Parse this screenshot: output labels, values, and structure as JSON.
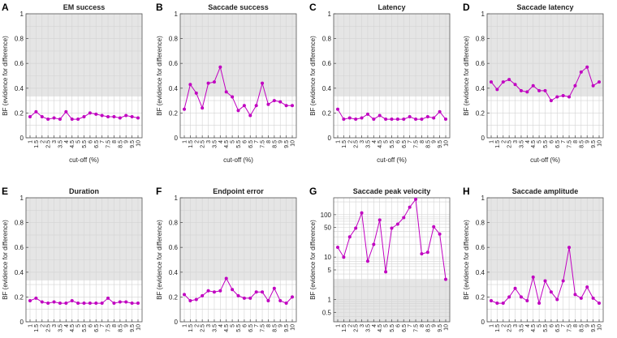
{
  "figure": {
    "x_tick_labels": [
      "1",
      "1.5",
      "2",
      "2.5",
      "3",
      "3.5",
      "4",
      "4.5",
      "5",
      "5.5",
      "6",
      "6.5",
      "7",
      "7.5",
      "8",
      "8.5",
      "9",
      "9.5",
      "10"
    ],
    "xlabel": "cut-off (%)",
    "ylabel": "BF (evidence for difference)",
    "colors": {
      "series": "#c000c0",
      "shade": "#e5e5e5",
      "grid": "#d4d4d4",
      "axis": "#555555",
      "text": "#222222"
    }
  },
  "chart_data": [
    {
      "letter": "A",
      "type": "line",
      "title": "EM success",
      "scale": "linear",
      "ylim": [
        0,
        1
      ],
      "shade_above": 0.333,
      "yticks": [
        0,
        0.2,
        0.4,
        0.6,
        0.8,
        1
      ],
      "ytick_labels": [
        "0",
        "0.2",
        "0.4",
        "0.6",
        "0.8",
        "1"
      ],
      "x": [
        1,
        1.5,
        2,
        2.5,
        3,
        3.5,
        4,
        4.5,
        5,
        5.5,
        6,
        6.5,
        7,
        7.5,
        8,
        8.5,
        9,
        9.5,
        10
      ],
      "values": [
        0.17,
        0.21,
        0.17,
        0.15,
        0.16,
        0.15,
        0.21,
        0.15,
        0.15,
        0.17,
        0.2,
        0.19,
        0.18,
        0.17,
        0.17,
        0.16,
        0.18,
        0.17,
        0.16
      ]
    },
    {
      "letter": "B",
      "type": "line",
      "title": "Saccade success",
      "scale": "linear",
      "ylim": [
        0,
        1
      ],
      "shade_above": 0.333,
      "yticks": [
        0,
        0.2,
        0.4,
        0.6,
        0.8,
        1
      ],
      "ytick_labels": [
        "0",
        "0.2",
        "0.4",
        "0.6",
        "0.8",
        "1"
      ],
      "x": [
        1,
        1.5,
        2,
        2.5,
        3,
        3.5,
        4,
        4.5,
        5,
        5.5,
        6,
        6.5,
        7,
        7.5,
        8,
        8.5,
        9,
        9.5,
        10
      ],
      "values": [
        0.23,
        0.43,
        0.36,
        0.24,
        0.44,
        0.45,
        0.57,
        0.37,
        0.33,
        0.22,
        0.26,
        0.18,
        0.26,
        0.44,
        0.27,
        0.3,
        0.29,
        0.26,
        0.26
      ]
    },
    {
      "letter": "C",
      "type": "line",
      "title": "Latency",
      "scale": "linear",
      "ylim": [
        0,
        1
      ],
      "shade_above": 0.333,
      "yticks": [
        0,
        0.2,
        0.4,
        0.6,
        0.8,
        1
      ],
      "ytick_labels": [
        "0",
        "0.2",
        "0.4",
        "0.6",
        "0.8",
        "1"
      ],
      "x": [
        1,
        1.5,
        2,
        2.5,
        3,
        3.5,
        4,
        4.5,
        5,
        5.5,
        6,
        6.5,
        7,
        7.5,
        8,
        8.5,
        9,
        9.5,
        10
      ],
      "values": [
        0.23,
        0.15,
        0.16,
        0.15,
        0.16,
        0.19,
        0.15,
        0.18,
        0.15,
        0.15,
        0.15,
        0.15,
        0.17,
        0.15,
        0.15,
        0.17,
        0.16,
        0.21,
        0.15
      ]
    },
    {
      "letter": "D",
      "type": "line",
      "title": "Saccade latency",
      "scale": "linear",
      "ylim": [
        0,
        1
      ],
      "shade_above": 0.333,
      "yticks": [
        0,
        0.2,
        0.4,
        0.6,
        0.8,
        1
      ],
      "ytick_labels": [
        "0",
        "0.2",
        "0.4",
        "0.6",
        "0.8",
        "1"
      ],
      "x": [
        1,
        1.5,
        2,
        2.5,
        3,
        3.5,
        4,
        4.5,
        5,
        5.5,
        6,
        6.5,
        7,
        7.5,
        8,
        8.5,
        9,
        9.5,
        10
      ],
      "values": [
        0.45,
        0.39,
        0.45,
        0.47,
        0.43,
        0.38,
        0.37,
        0.42,
        0.38,
        0.38,
        0.3,
        0.33,
        0.34,
        0.33,
        0.42,
        0.53,
        0.57,
        0.42,
        0.45
      ]
    },
    {
      "letter": "E",
      "type": "line",
      "title": "Duration",
      "scale": "linear",
      "ylim": [
        0,
        1
      ],
      "shade_above": 0.333,
      "yticks": [
        0,
        0.2,
        0.4,
        0.6,
        0.8,
        1
      ],
      "ytick_labels": [
        "0",
        "0.2",
        "0.4",
        "0.6",
        "0.8",
        "1"
      ],
      "x": [
        1,
        1.5,
        2,
        2.5,
        3,
        3.5,
        4,
        4.5,
        5,
        5.5,
        6,
        6.5,
        7,
        7.5,
        8,
        8.5,
        9,
        9.5,
        10
      ],
      "values": [
        0.17,
        0.19,
        0.16,
        0.15,
        0.16,
        0.15,
        0.15,
        0.17,
        0.15,
        0.15,
        0.15,
        0.15,
        0.15,
        0.19,
        0.15,
        0.16,
        0.16,
        0.15,
        0.15
      ]
    },
    {
      "letter": "F",
      "type": "line",
      "title": "Endpoint error",
      "scale": "linear",
      "ylim": [
        0,
        1
      ],
      "shade_above": 0.333,
      "yticks": [
        0,
        0.2,
        0.4,
        0.6,
        0.8,
        1
      ],
      "ytick_labels": [
        "0",
        "0.2",
        "0.4",
        "0.6",
        "0.8",
        "1"
      ],
      "x": [
        1,
        1.5,
        2,
        2.5,
        3,
        3.5,
        4,
        4.5,
        5,
        5.5,
        6,
        6.5,
        7,
        7.5,
        8,
        8.5,
        9,
        9.5,
        10
      ],
      "values": [
        0.22,
        0.17,
        0.18,
        0.21,
        0.25,
        0.24,
        0.25,
        0.35,
        0.26,
        0.21,
        0.19,
        0.19,
        0.24,
        0.24,
        0.17,
        0.27,
        0.17,
        0.15,
        0.2
      ]
    },
    {
      "letter": "G",
      "type": "line",
      "title": "Saccade peak velocity",
      "scale": "log",
      "ylim": [
        0.3,
        250
      ],
      "shade_below": 3,
      "yticks": [
        0.5,
        1,
        5,
        10,
        50,
        100
      ],
      "ytick_labels": [
        "0.5",
        "1",
        "5",
        "10",
        "50",
        "100"
      ],
      "x": [
        1,
        1.5,
        2,
        2.5,
        3,
        3.5,
        4,
        4.5,
        5,
        5.5,
        6,
        6.5,
        7,
        7.5,
        8,
        8.5,
        9,
        9.5,
        10
      ],
      "values": [
        17,
        10,
        30,
        48,
        110,
        8,
        20,
        75,
        4.5,
        48,
        60,
        85,
        150,
        230,
        12,
        13,
        52,
        35,
        3
      ]
    },
    {
      "letter": "H",
      "type": "line",
      "title": "Saccade amplitude",
      "scale": "linear",
      "ylim": [
        0,
        1
      ],
      "shade_above": 0.333,
      "yticks": [
        0,
        0.2,
        0.4,
        0.6,
        0.8,
        1
      ],
      "ytick_labels": [
        "0",
        "0.2",
        "0.4",
        "0.6",
        "0.8",
        "1"
      ],
      "x": [
        1,
        1.5,
        2,
        2.5,
        3,
        3.5,
        4,
        4.5,
        5,
        5.5,
        6,
        6.5,
        7,
        7.5,
        8,
        8.5,
        9,
        9.5,
        10
      ],
      "values": [
        0.17,
        0.15,
        0.15,
        0.2,
        0.27,
        0.2,
        0.17,
        0.36,
        0.15,
        0.33,
        0.24,
        0.18,
        0.33,
        0.6,
        0.22,
        0.19,
        0.28,
        0.19,
        0.15
      ]
    }
  ]
}
